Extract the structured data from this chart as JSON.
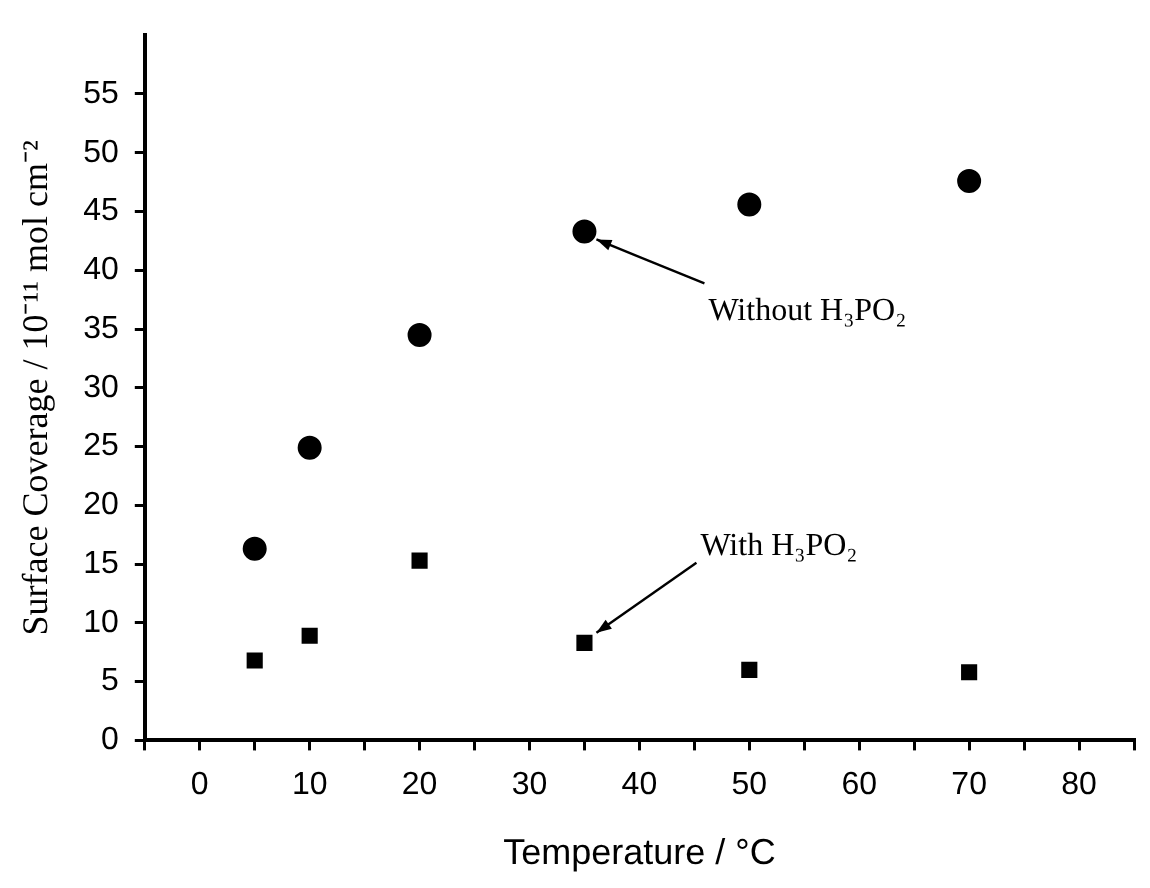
{
  "chart_data": {
    "type": "scatter",
    "xlabel": "Temperature / °C",
    "ylabel": "Surface Coverage / 10⁻¹¹ mol cm⁻²",
    "xlim": [
      -5,
      85
    ],
    "ylim": [
      0,
      60
    ],
    "xticks": [
      {
        "value": -5,
        "label": null
      },
      0,
      {
        "value": 5,
        "label": null
      },
      10,
      {
        "value": 15,
        "label": null
      },
      20,
      {
        "value": 25,
        "label": null
      },
      30,
      {
        "value": 35,
        "label": null
      },
      40,
      {
        "value": 45,
        "label": null
      },
      50,
      {
        "value": 55,
        "label": null
      },
      60,
      {
        "value": 65,
        "label": null
      },
      70,
      {
        "value": 75,
        "label": null
      },
      80,
      {
        "value": 85,
        "label": null
      }
    ],
    "yticks": [
      0,
      5,
      10,
      15,
      20,
      25,
      30,
      35,
      40,
      45,
      50,
      55
    ],
    "grid": false,
    "legend": false,
    "series": [
      {
        "color": "#000000",
        "marker": "circle",
        "x": [
          5,
          10,
          20,
          35,
          50,
          70
        ],
        "values": [
          16.3,
          24.9,
          34.5,
          43.3,
          45.6,
          47.6
        ]
      },
      {
        "color": "#000000",
        "marker": "square",
        "x": [
          5,
          10,
          20,
          35,
          50,
          70
        ],
        "values": [
          6.8,
          8.9,
          15.3,
          8.3,
          6.0,
          5.8
        ]
      }
    ],
    "annotations": [
      {
        "text": "Without H₃PO₂",
        "x": 35,
        "y": 43.3
      },
      {
        "text": "With H₃PO₂",
        "x": 35,
        "y": 8.3
      }
    ]
  }
}
